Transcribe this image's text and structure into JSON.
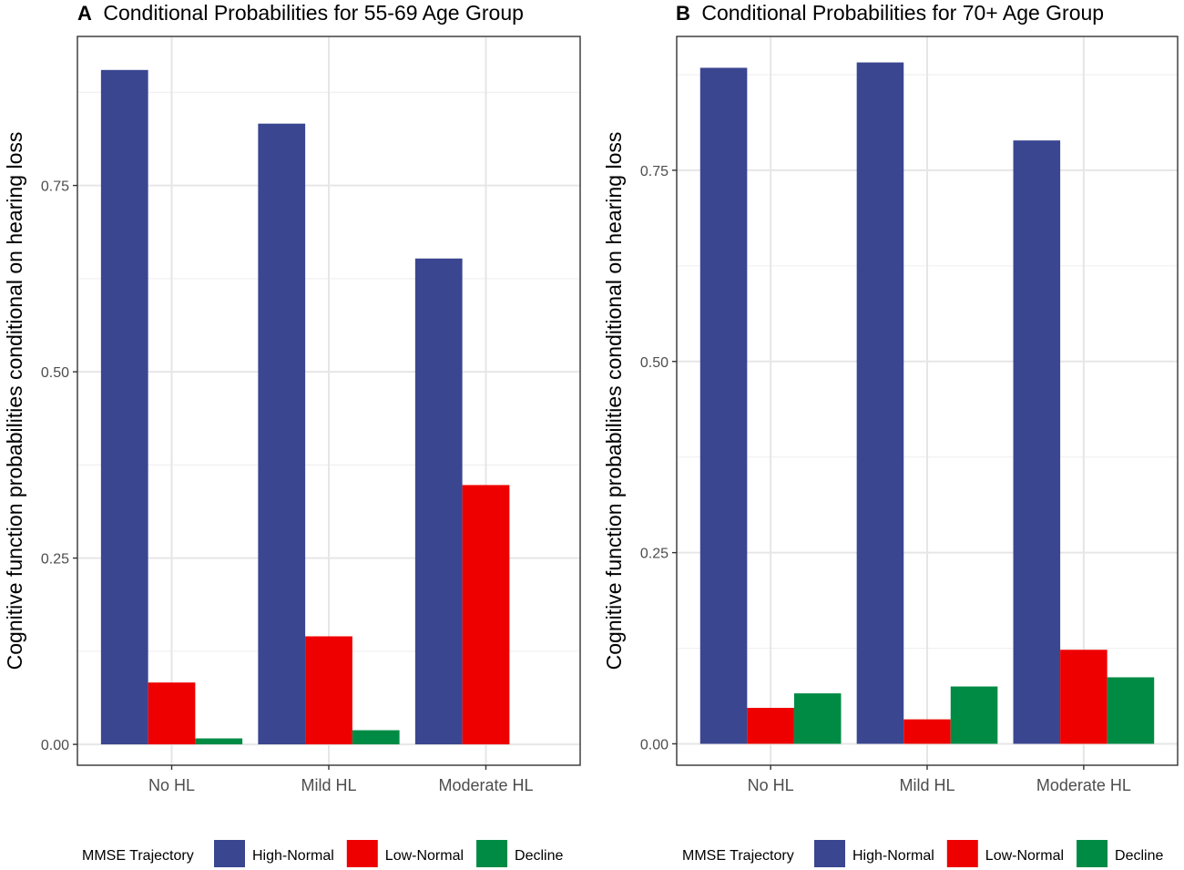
{
  "chart_data": [
    {
      "type": "bar",
      "panel_letter": "A",
      "title": "Conditional Probabilities for 55-69 Age Group",
      "ylabel": "Cognitive function probabilities conditional on hearing loss",
      "xlabel": "",
      "categories": [
        "No HL",
        "Mild HL",
        "Moderate HL"
      ],
      "series": [
        {
          "name": "High-Normal",
          "color": "#3a4690",
          "values": [
            0.905,
            0.833,
            0.652
          ]
        },
        {
          "name": "Low-Normal",
          "color": "#ee0000",
          "values": [
            0.083,
            0.145,
            0.348
          ]
        },
        {
          "name": "Decline",
          "color": "#008b45",
          "values": [
            0.008,
            0.019,
            0.0
          ]
        }
      ],
      "ylim": [
        -0.028,
        0.95
      ],
      "yticks": [
        0.0,
        0.25,
        0.5,
        0.75
      ],
      "ytick_labels": [
        "0.00",
        "0.25",
        "0.50",
        "0.75"
      ],
      "grid": true,
      "legend": {
        "title": "MMSE Trajectory",
        "position": "bottom"
      }
    },
    {
      "type": "bar",
      "panel_letter": "B",
      "title": "Conditional Probabilities for 70+ Age Group",
      "ylabel": "Cognitive function probabilities conditional on hearing loss",
      "xlabel": "",
      "categories": [
        "No HL",
        "Mild HL",
        "Moderate HL"
      ],
      "series": [
        {
          "name": "High-Normal",
          "color": "#3a4690",
          "values": [
            0.884,
            0.891,
            0.789
          ]
        },
        {
          "name": "Low-Normal",
          "color": "#ee0000",
          "values": [
            0.047,
            0.032,
            0.123
          ]
        },
        {
          "name": "Decline",
          "color": "#008b45",
          "values": [
            0.066,
            0.075,
            0.087
          ]
        }
      ],
      "ylim": [
        -0.028,
        0.925
      ],
      "yticks": [
        0.0,
        0.25,
        0.5,
        0.75
      ],
      "ytick_labels": [
        "0.00",
        "0.25",
        "0.50",
        "0.75"
      ],
      "grid": true,
      "legend": {
        "title": "MMSE Trajectory",
        "position": "bottom"
      }
    }
  ]
}
